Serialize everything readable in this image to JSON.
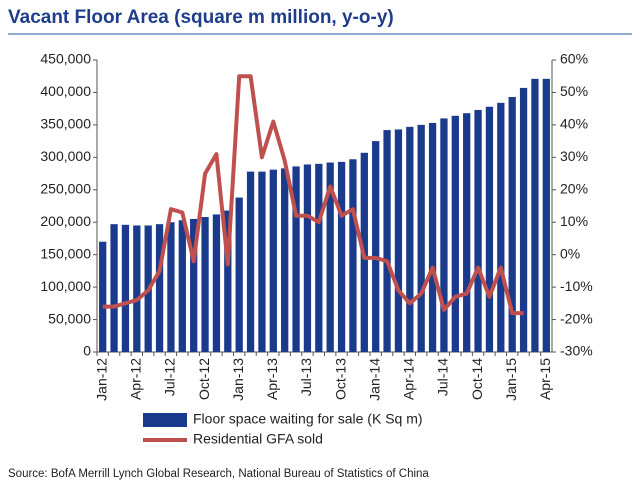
{
  "chart_data": {
    "type": "bar-line",
    "title": "Vacant Floor Area (square m million, y-o-y)",
    "source": "Source: BofA Merrill Lynch Global Research, National Bureau of Statistics of China",
    "categories": [
      "Jan-12",
      null,
      null,
      "Apr-12",
      null,
      null,
      "Jul-12",
      null,
      null,
      "Oct-12",
      null,
      null,
      "Jan-13",
      null,
      null,
      "Apr-13",
      null,
      null,
      "Jul-13",
      null,
      null,
      "Oct-13",
      null,
      null,
      "Jan-14",
      null,
      null,
      "Apr-14",
      null,
      null,
      "Jul-14",
      null,
      null,
      "Oct-14",
      null,
      null,
      "Jan-15",
      null,
      null,
      "Apr-15"
    ],
    "series": [
      {
        "name": "Floor space waiting for sale (K Sq m)",
        "color": "#1a3a8c",
        "kind": "bar",
        "values": [
          170000,
          197000,
          196000,
          195000,
          195000,
          197000,
          200000,
          203000,
          205000,
          208000,
          212000,
          218000,
          238000,
          278000,
          278000,
          281000,
          283000,
          286000,
          289000,
          290000,
          292000,
          293000,
          297000,
          307000,
          325000,
          342000,
          343000,
          347000,
          350000,
          353000,
          360000,
          364000,
          368000,
          373000,
          378000,
          384000,
          393000,
          407000,
          421000,
          421000
        ]
      },
      {
        "name": "Residential GFA sold",
        "color": "#c0504d",
        "kind": "line",
        "axis": "y2",
        "values": [
          -16,
          -16,
          -15,
          -14,
          -11,
          -5,
          14,
          13,
          -2,
          25,
          31,
          -3,
          55,
          55,
          30,
          41,
          29,
          12,
          12,
          10,
          21,
          12,
          14,
          -1,
          -1,
          -2,
          -11,
          -15,
          -12,
          -4,
          -17,
          -13,
          -12,
          -4,
          -13,
          -4,
          -18,
          -18,
          null,
          null
        ]
      }
    ],
    "ylim": [
      0,
      450000
    ],
    "yticks": [
      0,
      {
        "value": 50000,
        "label": "50,000"
      },
      {
        "value": 100000,
        "label": "100,000"
      },
      {
        "value": 150000,
        "label": "150,000"
      },
      {
        "value": 200000,
        "label": "200,000"
      },
      {
        "value": 250000,
        "label": "250,000"
      },
      {
        "value": 300000,
        "label": "300,000"
      },
      {
        "value": 350000,
        "label": "350,000"
      },
      {
        "value": 400000,
        "label": "400,000"
      },
      {
        "value": 450000,
        "label": "450,000"
      }
    ],
    "y2lim": [
      -30,
      60
    ],
    "y2ticks": [
      {
        "value": -30,
        "label": "-30%"
      },
      {
        "value": -20,
        "label": "-20%"
      },
      {
        "value": -10,
        "label": "-10%"
      },
      {
        "value": 0,
        "label": "0%"
      },
      {
        "value": 10,
        "label": "10%"
      },
      {
        "value": 20,
        "label": "20%"
      },
      {
        "value": 30,
        "label": "30%"
      },
      {
        "value": 40,
        "label": "40%"
      },
      {
        "value": 50,
        "label": "50%"
      },
      {
        "value": 60,
        "label": "60%"
      }
    ]
  }
}
